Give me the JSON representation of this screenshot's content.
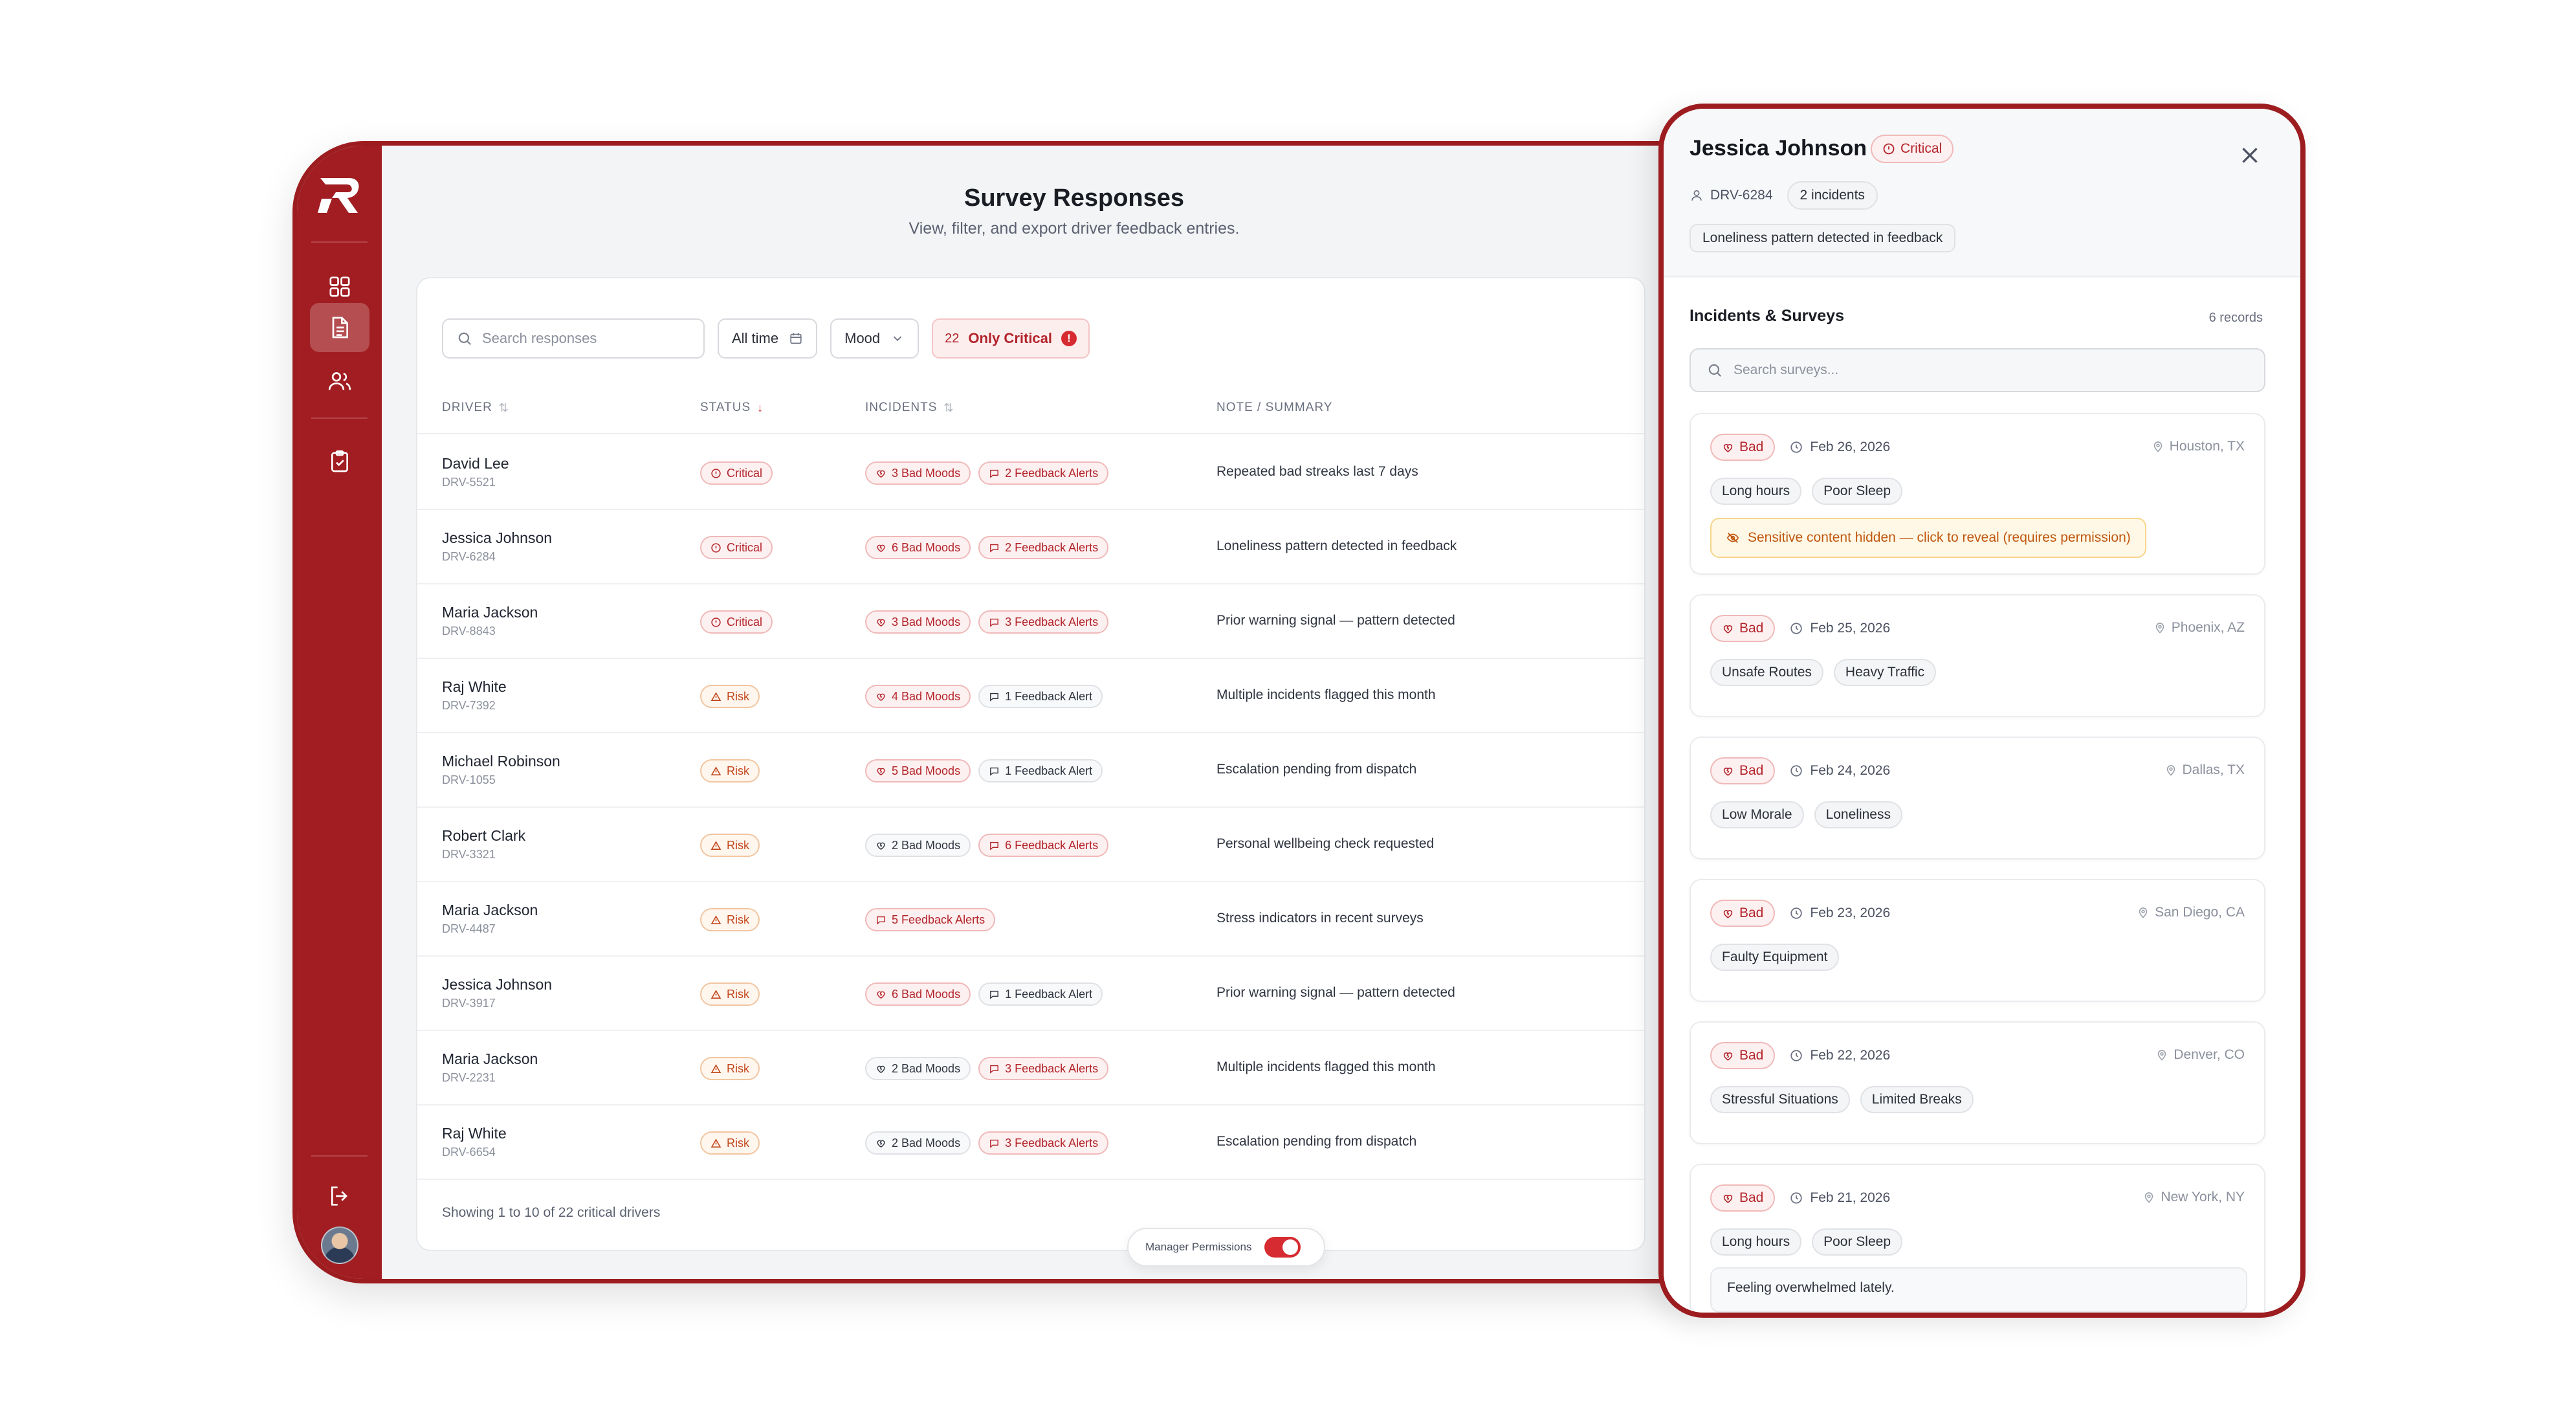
{
  "page": {
    "title": "Survey Responses",
    "subtitle": "View, filter, and export driver feedback entries."
  },
  "filters": {
    "search_placeholder": "Search responses",
    "time_label": "All time",
    "mood_label": "Mood",
    "critical_count": "22",
    "critical_label": "Only Critical",
    "critical_dot": "!"
  },
  "table": {
    "headers": [
      "Driver",
      "Status",
      "Incidents",
      "Note / Summary"
    ],
    "rows": [
      {
        "name": "David Lee",
        "id": "DRV-5521",
        "status": "Critical",
        "status_type": "critical",
        "incidents": [
          {
            "label": "3 Bad Moods",
            "type": "red",
            "icon": "heart-crack-icon"
          },
          {
            "label": "2 Feedback Alerts",
            "type": "red",
            "icon": "message-icon"
          }
        ],
        "note": "Repeated bad streaks last 7 days"
      },
      {
        "name": "Jessica Johnson",
        "id": "DRV-6284",
        "status": "Critical",
        "status_type": "critical",
        "incidents": [
          {
            "label": "6 Bad Moods",
            "type": "red",
            "icon": "heart-crack-icon"
          },
          {
            "label": "2 Feedback Alerts",
            "type": "red",
            "icon": "message-icon"
          }
        ],
        "note": "Loneliness pattern detected in feedback"
      },
      {
        "name": "Maria Jackson",
        "id": "DRV-8843",
        "status": "Critical",
        "status_type": "critical",
        "incidents": [
          {
            "label": "3 Bad Moods",
            "type": "red",
            "icon": "heart-crack-icon"
          },
          {
            "label": "3 Feedback Alerts",
            "type": "red",
            "icon": "message-icon"
          }
        ],
        "note": "Prior warning signal — pattern detected"
      },
      {
        "name": "Raj White",
        "id": "DRV-7392",
        "status": "Risk",
        "status_type": "risk",
        "incidents": [
          {
            "label": "4 Bad Moods",
            "type": "red",
            "icon": "heart-crack-icon"
          },
          {
            "label": "1 Feedback Alert",
            "type": "gray",
            "icon": "message-icon"
          }
        ],
        "note": "Multiple incidents flagged this month"
      },
      {
        "name": "Michael Robinson",
        "id": "DRV-1055",
        "status": "Risk",
        "status_type": "risk",
        "incidents": [
          {
            "label": "5 Bad Moods",
            "type": "red",
            "icon": "heart-crack-icon"
          },
          {
            "label": "1 Feedback Alert",
            "type": "gray",
            "icon": "message-icon"
          }
        ],
        "note": "Escalation pending from dispatch"
      },
      {
        "name": "Robert Clark",
        "id": "DRV-3321",
        "status": "Risk",
        "status_type": "risk",
        "incidents": [
          {
            "label": "2 Bad Moods",
            "type": "gray",
            "icon": "heart-crack-icon"
          },
          {
            "label": "6 Feedback Alerts",
            "type": "red",
            "icon": "message-icon"
          }
        ],
        "note": "Personal wellbeing check requested"
      },
      {
        "name": "Maria Jackson",
        "id": "DRV-4487",
        "status": "Risk",
        "status_type": "risk",
        "incidents": [
          {
            "label": "5 Feedback Alerts",
            "type": "red",
            "icon": "message-icon"
          }
        ],
        "note": "Stress indicators in recent surveys"
      },
      {
        "name": "Jessica Johnson",
        "id": "DRV-3917",
        "status": "Risk",
        "status_type": "risk",
        "incidents": [
          {
            "label": "6 Bad Moods",
            "type": "red",
            "icon": "heart-crack-icon"
          },
          {
            "label": "1 Feedback Alert",
            "type": "gray",
            "icon": "message-icon"
          }
        ],
        "note": "Prior warning signal — pattern detected"
      },
      {
        "name": "Maria Jackson",
        "id": "DRV-2231",
        "status": "Risk",
        "status_type": "risk",
        "incidents": [
          {
            "label": "2 Bad Moods",
            "type": "gray",
            "icon": "heart-crack-icon"
          },
          {
            "label": "3 Feedback Alerts",
            "type": "red",
            "icon": "message-icon"
          }
        ],
        "note": "Multiple incidents flagged this month"
      },
      {
        "name": "Raj White",
        "id": "DRV-6654",
        "status": "Risk",
        "status_type": "risk",
        "incidents": [
          {
            "label": "2 Bad Moods",
            "type": "gray",
            "icon": "heart-crack-icon"
          },
          {
            "label": "3 Feedback Alerts",
            "type": "red",
            "icon": "message-icon"
          }
        ],
        "note": "Escalation pending from dispatch"
      }
    ],
    "footer": "Showing 1 to 10 of 22 critical drivers"
  },
  "permissions": {
    "label": "Manager Permissions",
    "enabled": true
  },
  "drawer": {
    "name": "Jessica Johnson",
    "status": "Critical",
    "driver_id": "DRV-6284",
    "incidents_chip": "2 incidents",
    "summary": "Loneliness pattern detected in feedback",
    "section_title": "Incidents & Surveys",
    "records": "6 records",
    "search_placeholder": "Search surveys...",
    "surveys": [
      {
        "mood": "Bad",
        "date": "Feb 26, 2026",
        "location": "Houston, TX",
        "tags": [
          "Long hours",
          "Poor Sleep"
        ],
        "sensitive": "Sensitive content hidden — click to reveal (requires permission)"
      },
      {
        "mood": "Bad",
        "date": "Feb 25, 2026",
        "location": "Phoenix, AZ",
        "tags": [
          "Unsafe Routes",
          "Heavy Traffic"
        ]
      },
      {
        "mood": "Bad",
        "date": "Feb 24, 2026",
        "location": "Dallas, TX",
        "tags": [
          "Low Morale",
          "Loneliness"
        ]
      },
      {
        "mood": "Bad",
        "date": "Feb 23, 2026",
        "location": "San Diego, CA",
        "tags": [
          "Faulty Equipment"
        ]
      },
      {
        "mood": "Bad",
        "date": "Feb 22, 2026",
        "location": "Denver, CO",
        "tags": [
          "Stressful Situations",
          "Limited Breaks"
        ]
      },
      {
        "mood": "Bad",
        "date": "Feb 21, 2026",
        "location": "New York, NY",
        "tags": [
          "Long hours",
          "Poor Sleep"
        ],
        "note": "Feeling overwhelmed lately."
      }
    ]
  },
  "colors": {
    "brand": "#a11d21",
    "critical": "#b3232a",
    "risk": "#c2461b",
    "warning_bg": "#fff8e6"
  }
}
